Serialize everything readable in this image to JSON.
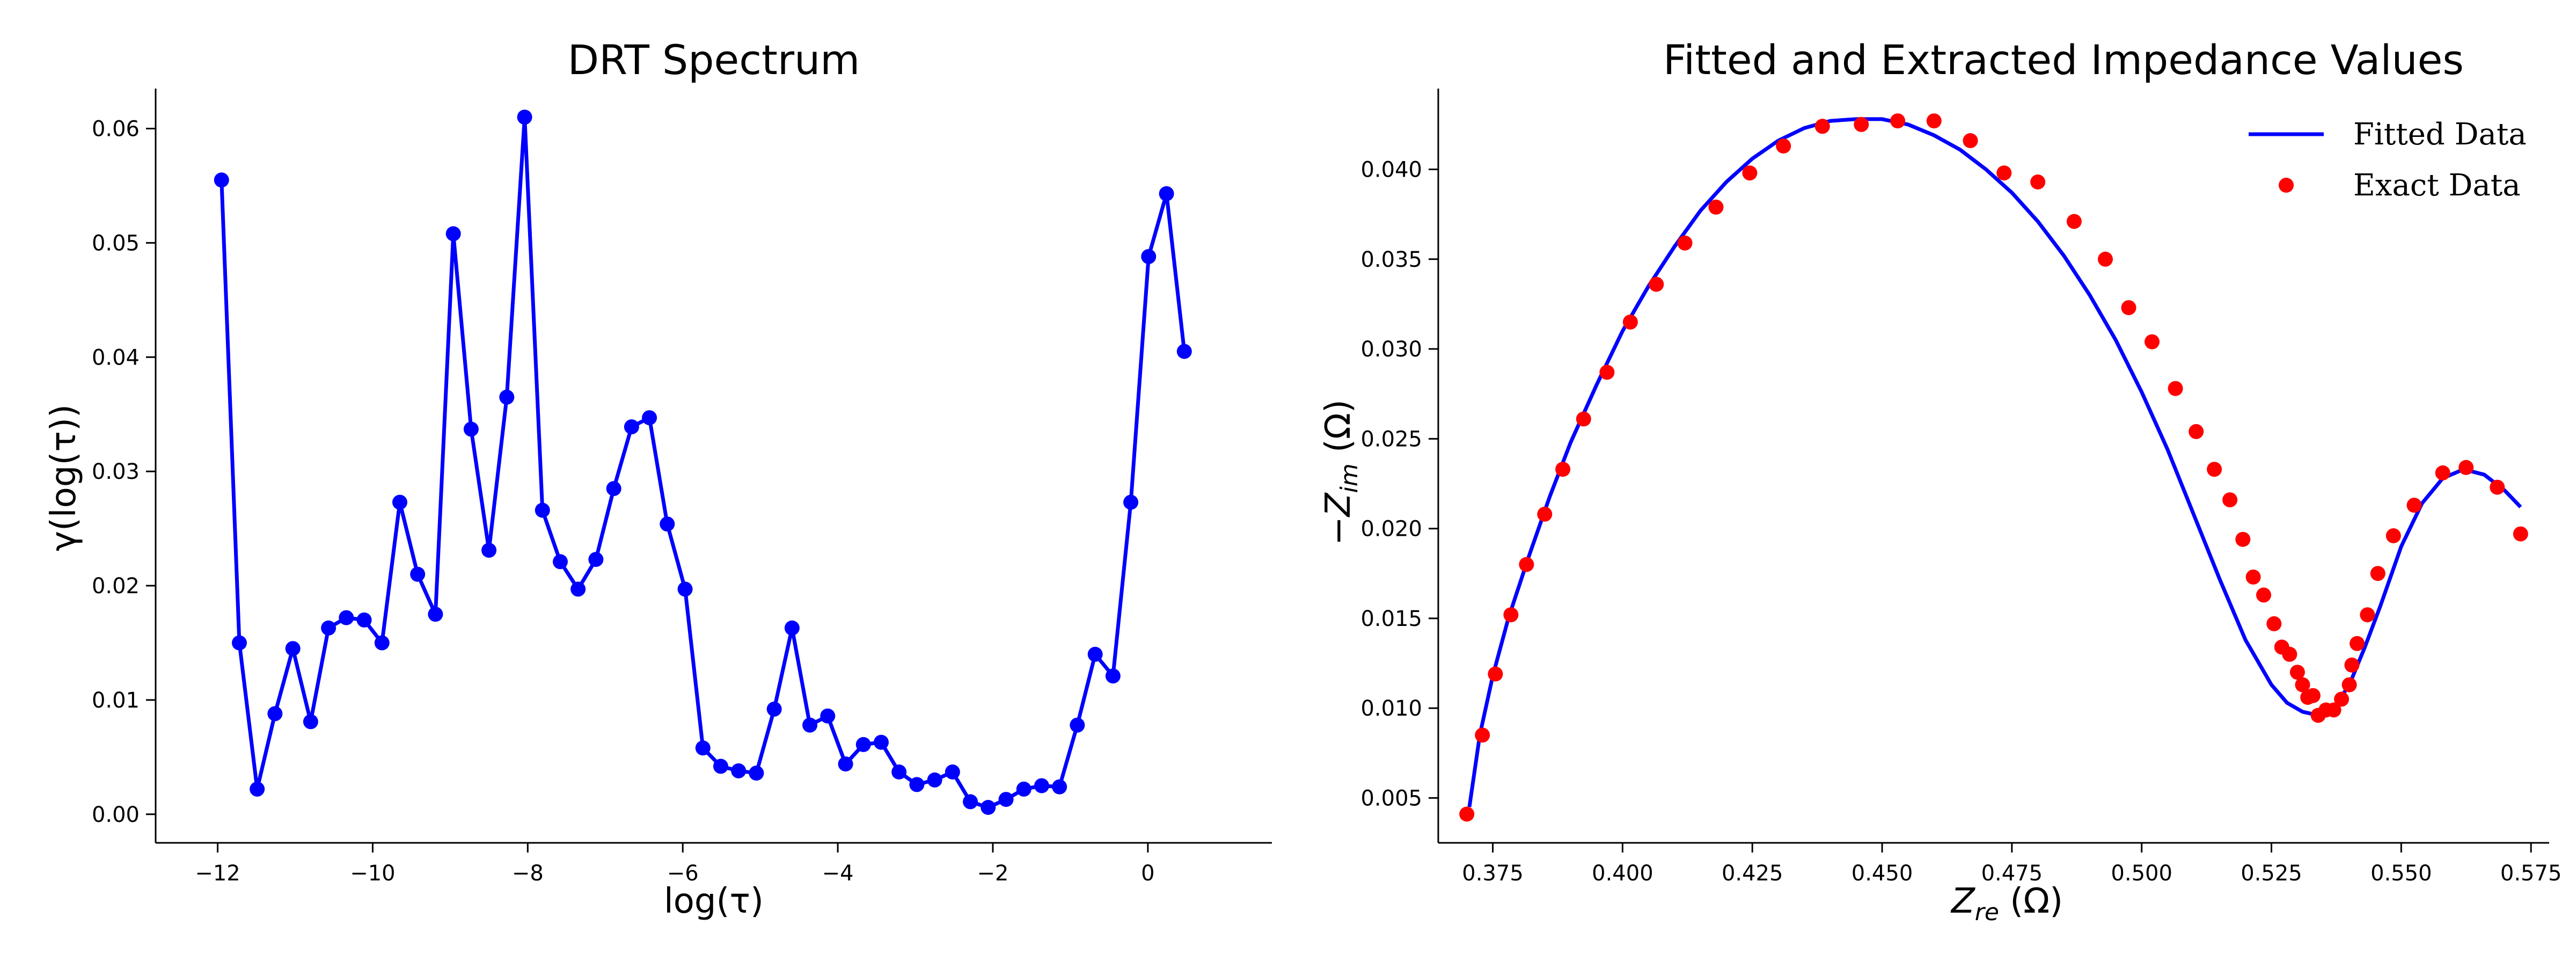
{
  "chart_data": [
    {
      "type": "line",
      "title": "DRT Spectrum",
      "xlabel": "log(τ)",
      "ylabel": "γ(log(τ))",
      "xlim": [
        -12.8,
        1.6
      ],
      "ylim": [
        -0.0025,
        0.0635
      ],
      "xticks": [
        -12,
        -10,
        -8,
        -6,
        -4,
        -2,
        0
      ],
      "xtick_labels": [
        "−12",
        "−10",
        "−8",
        "−6",
        "−4",
        "−2",
        "0"
      ],
      "yticks": [
        0.0,
        0.01,
        0.02,
        0.03,
        0.04,
        0.05,
        0.06
      ],
      "ytick_labels": [
        "0.00",
        "0.01",
        "0.02",
        "0.03",
        "0.04",
        "0.05",
        "0.06"
      ],
      "grid": false,
      "series": [
        {
          "color": "#0000ff",
          "marker": "circle",
          "x": [
            -11.95,
            -11.72,
            -11.49,
            -11.26,
            -11.03,
            -10.8,
            -10.57,
            -10.34,
            -10.11,
            -9.88,
            -9.65,
            -9.42,
            -9.19,
            -8.96,
            -8.73,
            -8.5,
            -8.27,
            -8.04,
            -7.81,
            -7.58,
            -7.35,
            -7.12,
            -6.89,
            -6.66,
            -6.43,
            -6.2,
            -5.97,
            -5.74,
            -5.51,
            -5.28,
            -5.05,
            -4.82,
            -4.59,
            -4.36,
            -4.13,
            -3.9,
            -3.67,
            -3.44,
            -3.21,
            -2.98,
            -2.75,
            -2.52,
            -2.29,
            -2.06,
            -1.83,
            -1.6,
            -1.37,
            -1.14,
            -0.91,
            -0.68,
            -0.45,
            -0.22,
            0.01,
            0.24,
            0.47
          ],
          "y": [
            0.0555,
            0.015,
            0.0022,
            0.0088,
            0.0145,
            0.0081,
            0.0163,
            0.0172,
            0.017,
            0.015,
            0.0273,
            0.021,
            0.0175,
            0.0508,
            0.0337,
            0.0231,
            0.0365,
            0.061,
            0.0266,
            0.0221,
            0.0197,
            0.0223,
            0.0285,
            0.0339,
            0.0347,
            0.0254,
            0.0197,
            0.0058,
            0.0042,
            0.0038,
            0.0036,
            0.0092,
            0.0163,
            0.0078,
            0.0086,
            0.0044,
            0.0061,
            0.0063,
            0.0037,
            0.0026,
            0.003,
            0.0037,
            0.0011,
            0.0006,
            0.0013,
            0.0022,
            0.0025,
            0.0024,
            0.0078,
            0.014,
            0.0121,
            0.0273,
            0.0488,
            0.0543,
            0.0405
          ]
        }
      ]
    },
    {
      "type": "line",
      "title": "Fitted and Extracted Impedance Values",
      "xlabel": "Zre (Ω)",
      "ylabel": "−Zim (Ω)",
      "xlim": [
        0.3645,
        0.5785
      ],
      "ylim": [
        0.0025,
        0.0445
      ],
      "xticks": [
        0.375,
        0.4,
        0.425,
        0.45,
        0.475,
        0.5,
        0.525,
        0.55,
        0.575
      ],
      "xtick_labels": [
        "0.375",
        "0.400",
        "0.425",
        "0.450",
        "0.475",
        "0.500",
        "0.525",
        "0.550",
        "0.575"
      ],
      "yticks": [
        0.005,
        0.01,
        0.015,
        0.02,
        0.025,
        0.03,
        0.035,
        0.04
      ],
      "ytick_labels": [
        "0.005",
        "0.010",
        "0.015",
        "0.020",
        "0.025",
        "0.030",
        "0.035",
        "0.040"
      ],
      "grid": false,
      "legend": "top-right",
      "series": [
        {
          "name": "Fitted Data",
          "color": "#0000ff",
          "style": "line",
          "x": [
            0.3705,
            0.3725,
            0.375,
            0.378,
            0.382,
            0.386,
            0.39,
            0.395,
            0.4,
            0.405,
            0.41,
            0.415,
            0.42,
            0.425,
            0.43,
            0.435,
            0.44,
            0.445,
            0.45,
            0.455,
            0.46,
            0.465,
            0.47,
            0.475,
            0.48,
            0.485,
            0.49,
            0.495,
            0.5,
            0.505,
            0.51,
            0.515,
            0.52,
            0.525,
            0.528,
            0.531,
            0.534,
            0.537,
            0.54,
            0.543,
            0.546,
            0.55,
            0.554,
            0.558,
            0.562,
            0.566,
            0.57,
            0.573
          ],
          "y": [
            0.0045,
            0.0085,
            0.0118,
            0.015,
            0.0185,
            0.0218,
            0.0248,
            0.028,
            0.031,
            0.0335,
            0.0357,
            0.0377,
            0.0393,
            0.0406,
            0.0416,
            0.0423,
            0.0427,
            0.0428,
            0.0428,
            0.0425,
            0.0419,
            0.0411,
            0.04,
            0.0387,
            0.0371,
            0.0352,
            0.033,
            0.0305,
            0.0276,
            0.0244,
            0.0208,
            0.0172,
            0.0138,
            0.0113,
            0.0103,
            0.0098,
            0.0096,
            0.01,
            0.0113,
            0.0134,
            0.0157,
            0.019,
            0.0214,
            0.0228,
            0.0233,
            0.023,
            0.0221,
            0.0212
          ]
        },
        {
          "name": "Exact Data",
          "color": "#ff0000",
          "style": "scatter",
          "x": [
            0.37,
            0.373,
            0.3755,
            0.3785,
            0.3815,
            0.385,
            0.3885,
            0.3925,
            0.397,
            0.4015,
            0.4065,
            0.412,
            0.418,
            0.4245,
            0.431,
            0.4385,
            0.446,
            0.453,
            0.46,
            0.467,
            0.4735,
            0.48,
            0.487,
            0.493,
            0.4975,
            0.502,
            0.5065,
            0.5105,
            0.514,
            0.517,
            0.5195,
            0.5215,
            0.5235,
            0.5255,
            0.527,
            0.5285,
            0.53,
            0.531,
            0.532,
            0.533,
            0.534,
            0.5355,
            0.537,
            0.5385,
            0.54,
            0.5405,
            0.5415,
            0.5435,
            0.5455,
            0.5485,
            0.5525,
            0.558,
            0.5625,
            0.5685,
            0.573
          ],
          "y": [
            0.0041,
            0.0085,
            0.0119,
            0.0152,
            0.018,
            0.0208,
            0.0233,
            0.0261,
            0.0287,
            0.0315,
            0.0336,
            0.0359,
            0.0379,
            0.0398,
            0.0413,
            0.0424,
            0.0425,
            0.0427,
            0.0427,
            0.0416,
            0.0398,
            0.0393,
            0.0371,
            0.035,
            0.0323,
            0.0304,
            0.0278,
            0.0254,
            0.0233,
            0.0216,
            0.0194,
            0.0173,
            0.0163,
            0.0147,
            0.0134,
            0.013,
            0.012,
            0.0113,
            0.0106,
            0.0107,
            0.0096,
            0.0099,
            0.0099,
            0.0105,
            0.0113,
            0.0124,
            0.0136,
            0.0152,
            0.0175,
            0.0196,
            0.0213,
            0.0231,
            0.0234,
            0.0223,
            0.0197
          ]
        }
      ]
    }
  ]
}
